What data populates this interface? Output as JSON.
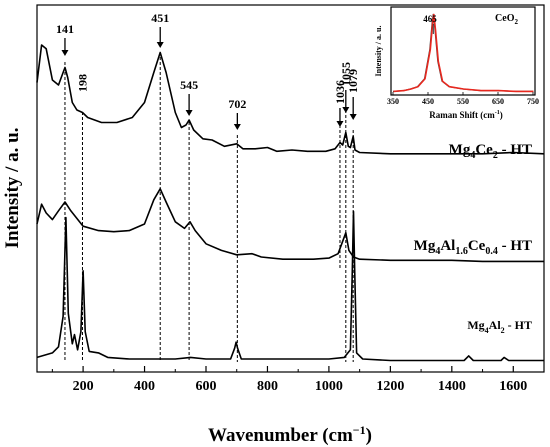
{
  "chart_data": {
    "type": "line",
    "xlabel_main": "Wavenumber (cm",
    "xlabel_sup": "−1",
    "xlabel_close": ")",
    "ylabel": "Intensity / a. u.",
    "xlim": [
      50,
      1700
    ],
    "x_ticks": [
      "200",
      "400",
      "600",
      "800",
      "1000",
      "1200",
      "1400",
      "1600"
    ],
    "series": [
      {
        "name_parts": [
          [
            "Mg",
            false
          ],
          [
            "4",
            true
          ],
          [
            "Ce",
            false
          ],
          [
            "2",
            true
          ],
          [
            " - HT",
            false
          ]
        ],
        "points": [
          [
            50,
            0.58
          ],
          [
            65,
            0.88
          ],
          [
            80,
            0.85
          ],
          [
            100,
            0.6
          ],
          [
            120,
            0.56
          ],
          [
            135,
            0.66
          ],
          [
            141,
            0.7
          ],
          [
            150,
            0.62
          ],
          [
            165,
            0.42
          ],
          [
            180,
            0.36
          ],
          [
            198,
            0.34
          ],
          [
            215,
            0.3
          ],
          [
            260,
            0.26
          ],
          [
            310,
            0.26
          ],
          [
            360,
            0.3
          ],
          [
            400,
            0.42
          ],
          [
            430,
            0.66
          ],
          [
            451,
            0.82
          ],
          [
            470,
            0.66
          ],
          [
            500,
            0.34
          ],
          [
            520,
            0.22
          ],
          [
            535,
            0.24
          ],
          [
            545,
            0.28
          ],
          [
            560,
            0.2
          ],
          [
            590,
            0.13
          ],
          [
            620,
            0.12
          ],
          [
            660,
            0.07
          ],
          [
            700,
            0.09
          ],
          [
            720,
            0.05
          ],
          [
            760,
            0.05
          ],
          [
            800,
            0.06
          ],
          [
            830,
            0.03
          ],
          [
            880,
            0.04
          ],
          [
            930,
            0.03
          ],
          [
            990,
            0.03
          ],
          [
            1020,
            0.05
          ],
          [
            1036,
            0.1
          ],
          [
            1045,
            0.08
          ],
          [
            1055,
            0.18
          ],
          [
            1063,
            0.07
          ],
          [
            1070,
            0.06
          ],
          [
            1079,
            0.15
          ],
          [
            1085,
            0.04
          ],
          [
            1100,
            0.02
          ],
          [
            1200,
            0.01
          ],
          [
            1300,
            0.01
          ],
          [
            1400,
            0.01
          ],
          [
            1500,
            0.01
          ],
          [
            1600,
            0.02
          ],
          [
            1700,
            0.01
          ]
        ]
      },
      {
        "name_parts": [
          [
            "Mg",
            false
          ],
          [
            "4",
            true
          ],
          [
            "Al",
            false
          ],
          [
            "1.6",
            true
          ],
          [
            "Ce",
            false
          ],
          [
            "0.4",
            true
          ],
          [
            " - HT",
            false
          ]
        ],
        "points": [
          [
            50,
            0.4
          ],
          [
            65,
            0.58
          ],
          [
            80,
            0.5
          ],
          [
            100,
            0.44
          ],
          [
            120,
            0.52
          ],
          [
            141,
            0.6
          ],
          [
            160,
            0.52
          ],
          [
            200,
            0.38
          ],
          [
            250,
            0.34
          ],
          [
            300,
            0.33
          ],
          [
            350,
            0.34
          ],
          [
            400,
            0.4
          ],
          [
            430,
            0.62
          ],
          [
            451,
            0.72
          ],
          [
            470,
            0.6
          ],
          [
            500,
            0.42
          ],
          [
            530,
            0.36
          ],
          [
            548,
            0.42
          ],
          [
            565,
            0.34
          ],
          [
            600,
            0.22
          ],
          [
            650,
            0.16
          ],
          [
            700,
            0.12
          ],
          [
            750,
            0.13
          ],
          [
            780,
            0.1
          ],
          [
            850,
            0.08
          ],
          [
            950,
            0.08
          ],
          [
            1000,
            0.09
          ],
          [
            1030,
            0.13
          ],
          [
            1055,
            0.32
          ],
          [
            1065,
            0.16
          ],
          [
            1080,
            0.1
          ],
          [
            1100,
            0.08
          ],
          [
            1200,
            0.07
          ],
          [
            1400,
            0.07
          ],
          [
            1500,
            0.06
          ],
          [
            1600,
            0.06
          ],
          [
            1700,
            0.06
          ]
        ]
      },
      {
        "name_parts": [
          [
            "Mg",
            false
          ],
          [
            "4",
            true
          ],
          [
            "Al",
            false
          ],
          [
            "2",
            true
          ],
          [
            " - HT",
            false
          ]
        ],
        "points": [
          [
            50,
            0.03
          ],
          [
            100,
            0.06
          ],
          [
            120,
            0.1
          ],
          [
            135,
            0.3
          ],
          [
            144,
            0.95
          ],
          [
            152,
            0.32
          ],
          [
            165,
            0.12
          ],
          [
            172,
            0.18
          ],
          [
            182,
            0.08
          ],
          [
            193,
            0.2
          ],
          [
            200,
            0.6
          ],
          [
            207,
            0.2
          ],
          [
            220,
            0.07
          ],
          [
            250,
            0.06
          ],
          [
            280,
            0.03
          ],
          [
            350,
            0.02
          ],
          [
            450,
            0.02
          ],
          [
            500,
            0.02
          ],
          [
            550,
            0.03
          ],
          [
            600,
            0.02
          ],
          [
            680,
            0.02
          ],
          [
            693,
            0.09
          ],
          [
            698,
            0.13
          ],
          [
            703,
            0.09
          ],
          [
            715,
            0.02
          ],
          [
            900,
            0.02
          ],
          [
            1000,
            0.02
          ],
          [
            1050,
            0.03
          ],
          [
            1070,
            0.08
          ],
          [
            1076,
            0.6
          ],
          [
            1080,
            0.99
          ],
          [
            1084,
            0.6
          ],
          [
            1090,
            0.06
          ],
          [
            1110,
            0.02
          ],
          [
            1200,
            0.01
          ],
          [
            1300,
            0.01
          ],
          [
            1440,
            0.01
          ],
          [
            1455,
            0.04
          ],
          [
            1470,
            0.01
          ],
          [
            1560,
            0.01
          ],
          [
            1570,
            0.03
          ],
          [
            1585,
            0.01
          ],
          [
            1700,
            0.01
          ]
        ]
      }
    ],
    "peak_labels": [
      "141",
      "198",
      "451",
      "545",
      "702",
      "1036",
      "1055",
      "1079"
    ],
    "inset": {
      "title": "CeO",
      "title_sub": "2",
      "xlabel": "Raman Shift (cm",
      "xlabel_sup": "-1",
      "xlabel_close": ")",
      "ylabel": "Intensity / a. u.",
      "peak_label": "465",
      "xlim": [
        350,
        750
      ],
      "x_ticks": [
        "350",
        "450",
        "550",
        "650",
        "750"
      ],
      "points": [
        [
          350,
          0.02
        ],
        [
          380,
          0.03
        ],
        [
          400,
          0.05
        ],
        [
          420,
          0.08
        ],
        [
          440,
          0.18
        ],
        [
          455,
          0.55
        ],
        [
          462,
          0.9
        ],
        [
          465,
          1.0
        ],
        [
          470,
          0.8
        ],
        [
          478,
          0.4
        ],
        [
          490,
          0.15
        ],
        [
          510,
          0.08
        ],
        [
          550,
          0.05
        ],
        [
          600,
          0.03
        ],
        [
          650,
          0.03
        ],
        [
          700,
          0.02
        ],
        [
          750,
          0.02
        ]
      ]
    }
  }
}
